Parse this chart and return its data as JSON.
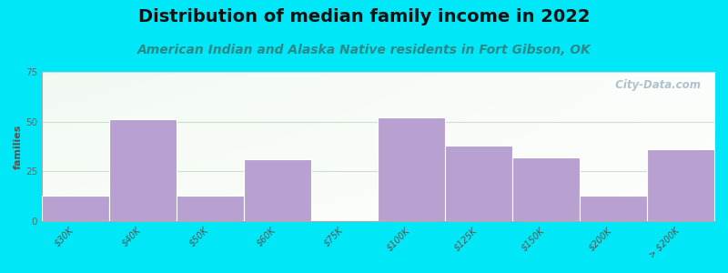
{
  "title": "Distribution of median family income in 2022",
  "subtitle": "American Indian and Alaska Native residents in Fort Gibson, OK",
  "ylabel": "families",
  "categories": [
    "$30K",
    "$40K",
    "$50K",
    "$60K",
    "$75K",
    "$100K",
    "$125K",
    "$150K",
    "$200K",
    "> $200K"
  ],
  "values": [
    13,
    51,
    13,
    31,
    0,
    52,
    38,
    32,
    13,
    36
  ],
  "bar_color": "#b8a0d0",
  "bg_outer": "#00e8f8",
  "ylim": [
    0,
    75
  ],
  "yticks": [
    0,
    25,
    50,
    75
  ],
  "title_fontsize": 14,
  "subtitle_fontsize": 10,
  "subtitle_color": "#2a8888",
  "ylabel_fontsize": 8,
  "tick_fontsize": 7,
  "watermark_text": "  City-Data.com",
  "watermark_color": "#a0b8c8",
  "grid_color": "#d0ddd0",
  "bar_edge_color": "white",
  "bar_width": 1.0
}
